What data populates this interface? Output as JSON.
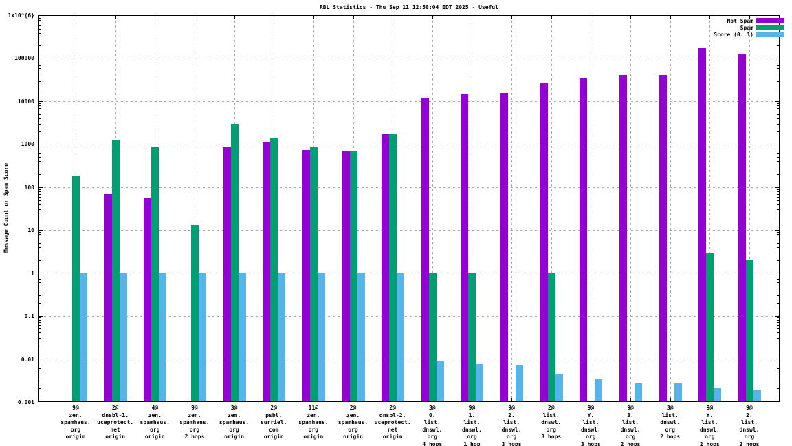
{
  "chart_data": {
    "type": "bar",
    "title": "RBL Statistics - Thu Sep 11 12:58:04 EDT 2025 - Useful",
    "ylabel": "Message Count or Spam Score",
    "xlabel": "",
    "y_scale": "log",
    "ylim": [
      0.001,
      1000000
    ],
    "grid": true,
    "legend_position": "top-right",
    "y_tick_labels": [
      "1x10^{6}",
      "100000",
      "10000",
      "1000",
      "100",
      "10",
      "1",
      "0.1",
      "0.01",
      "0.001"
    ],
    "series_order": [
      "not_spam",
      "spam",
      "score"
    ],
    "legend": [
      {
        "name": "Not Spam",
        "color": "#9400d3"
      },
      {
        "name": "Spam",
        "color": "#009e73"
      },
      {
        "name": "Score (0..1)",
        "color": "#56b4e9"
      }
    ],
    "colors": {
      "not_spam": "#9400d3",
      "spam": "#009e73",
      "score": "#56b4e9",
      "grid": "#a8a8a8",
      "background": "#ffffff"
    },
    "groups": [
      {
        "label_lines": [
          "9@",
          "zen.",
          "spamhaus.",
          "org",
          "origin"
        ],
        "not_spam": null,
        "spam": 185,
        "score": 1
      },
      {
        "label_lines": [
          "2@",
          "dnsbl-1.",
          "uceprotect.",
          "net",
          "origin"
        ],
        "not_spam": 70,
        "spam": 1300,
        "score": 1
      },
      {
        "label_lines": [
          "4@",
          "zen.",
          "spamhaus.",
          "org",
          "origin"
        ],
        "not_spam": 56,
        "spam": 900,
        "score": 1
      },
      {
        "label_lines": [
          "9@",
          "zen.",
          "spamhaus.",
          "org",
          "2 hops"
        ],
        "not_spam": null,
        "spam": 13,
        "score": 1
      },
      {
        "label_lines": [
          "3@",
          "zen.",
          "spamhaus.",
          "org",
          "origin"
        ],
        "not_spam": 850,
        "spam": 3000,
        "score": 1
      },
      {
        "label_lines": [
          "2@",
          "psbl.",
          "surriel.",
          "com",
          "origin"
        ],
        "not_spam": 1100,
        "spam": 1450,
        "score": 1
      },
      {
        "label_lines": [
          "11@",
          "zen.",
          "spamhaus.",
          "org",
          "origin"
        ],
        "not_spam": 730,
        "spam": 840,
        "score": 1
      },
      {
        "label_lines": [
          "2@",
          "zen.",
          "spamhaus.",
          "org",
          "origin"
        ],
        "not_spam": 680,
        "spam": 700,
        "score": 1
      },
      {
        "label_lines": [
          "2@",
          "dnsbl-2.",
          "uceprotect.",
          "net",
          "origin"
        ],
        "not_spam": 1700,
        "spam": 1700,
        "score": 1
      },
      {
        "label_lines": [
          "3@",
          "0.",
          "list.",
          "dnswl.",
          "org",
          "4 hops"
        ],
        "not_spam": 12000,
        "spam": 1,
        "score": 0.009
      },
      {
        "label_lines": [
          "9@",
          "1.",
          "list.",
          "dnswl.",
          "org",
          "1 hop"
        ],
        "not_spam": 15000,
        "spam": 1,
        "score": 0.0073
      },
      {
        "label_lines": [
          "9@",
          "2.",
          "list.",
          "dnswl.",
          "org",
          "3 hops"
        ],
        "not_spam": 16000,
        "spam": null,
        "score": 0.0068
      },
      {
        "label_lines": [
          "2@",
          "list.",
          "dnswl.",
          "org",
          "3 hops"
        ],
        "not_spam": 27000,
        "spam": 1,
        "score": 0.0042
      },
      {
        "label_lines": [
          "9@",
          "Y.",
          "list.",
          "dnswl.",
          "org",
          "3 hops"
        ],
        "not_spam": 34000,
        "spam": null,
        "score": 0.0033
      },
      {
        "label_lines": [
          "9@",
          "3.",
          "list.",
          "dnswl.",
          "org",
          "2 hops"
        ],
        "not_spam": 42000,
        "spam": null,
        "score": 0.0026
      },
      {
        "label_lines": [
          "3@",
          "list.",
          "dnswl.",
          "org",
          "2 hops"
        ],
        "not_spam": 42000,
        "spam": null,
        "score": 0.0026
      },
      {
        "label_lines": [
          "9@",
          "Y.",
          "list.",
          "dnswl.",
          "org",
          "2 hops"
        ],
        "not_spam": 175000,
        "spam": 3,
        "score": 0.002
      },
      {
        "label_lines": [
          "9@",
          "2.",
          "list.",
          "dnswl.",
          "org",
          "2 hops"
        ],
        "not_spam": 125000,
        "spam": 2,
        "score": 0.0018
      }
    ]
  }
}
